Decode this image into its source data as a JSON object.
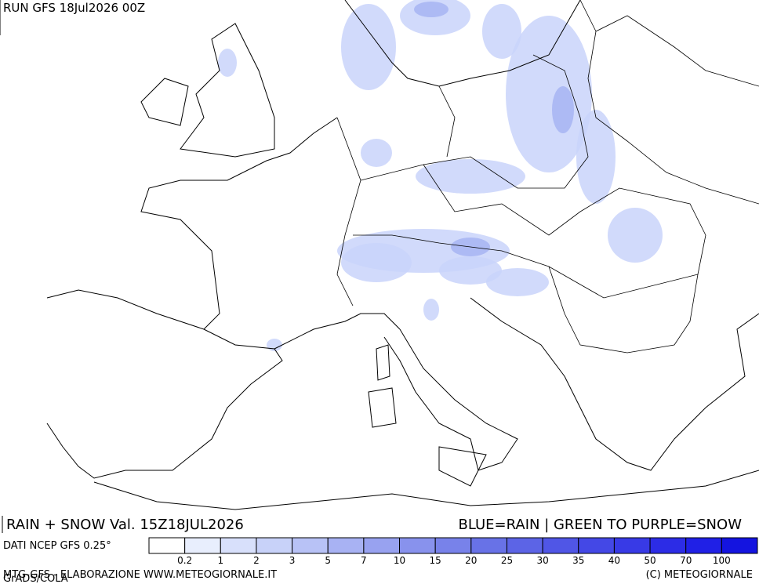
{
  "header": {
    "run": "RUN GFS 18Jul2026 00Z"
  },
  "footer": {
    "title_left": "RAIN + SNOW Val. 15Z18JUL2026",
    "title_right": "BLUE=RAIN | GREEN TO PURPLE=SNOW",
    "source": "DATI NCEP GFS 0.25°",
    "credit_left": "MTG-GFS - ELABORAZIONE WWW.METEOGIORNALE.IT",
    "grads": "GrADS/COLA",
    "copyright": "(C) METEOGIORNALE"
  },
  "legend": {
    "levels": [
      0.2,
      1,
      2,
      3,
      5,
      7,
      10,
      15,
      20,
      25,
      30,
      35,
      40,
      50,
      70,
      100
    ],
    "colors": [
      "#ffffff",
      "#e8eefd",
      "#d8e0fb",
      "#c8d2f9",
      "#b8c2f6",
      "#a8b2f3",
      "#98a2f0",
      "#8892ed",
      "#7882ea",
      "#6872e7",
      "#5c64e6",
      "#5056e6",
      "#4448e6",
      "#383ae6",
      "#2c2ce6",
      "#2020e6",
      "#1414e0"
    ]
  }
}
